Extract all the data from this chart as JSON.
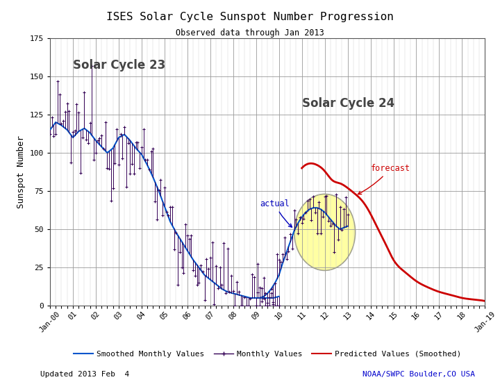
{
  "title": "ISES Solar Cycle Sunspot Number Progression",
  "subtitle": "Observed data through Jan 2013",
  "ylabel": "Sunspot Number",
  "ylim": [
    0,
    175
  ],
  "yticks": [
    0,
    25,
    50,
    75,
    100,
    125,
    150,
    175
  ],
  "background_color": "#ffffff",
  "grid_major_color": "#999999",
  "grid_minor_color": "#cccccc",
  "smoothed_color": "#0055cc",
  "monthly_color": "#330055",
  "predicted_color": "#cc0000",
  "annotation_actual_color": "#0000bb",
  "annotation_forecast_color": "#cc0000",
  "sc23_label": "Solar Cycle 23",
  "sc24_label": "Solar Cycle 24",
  "sc23_label_color": "#444444",
  "sc24_label_color": "#444444",
  "legend_smoothed": "Smoothed Monthly Values",
  "legend_monthly": "Monthly Values",
  "legend_predicted": "Predicted Values (Smoothed)",
  "footer_left": "Updated 2013 Feb  4",
  "footer_right": "NOAA/SWPC Boulder,CO USA",
  "footer_right_color": "#0000cc",
  "circle_color": "#ffff99",
  "circle_edge_color": "#999988",
  "sc23_smooth_months": [
    0,
    3,
    6,
    9,
    12,
    15,
    18,
    21,
    24,
    27,
    30,
    33,
    36,
    39,
    42,
    45,
    48,
    51,
    54,
    57,
    60,
    63,
    66,
    69,
    72,
    75,
    78,
    81,
    84,
    87,
    90,
    93,
    96,
    99,
    102,
    105,
    108,
    111,
    114,
    117,
    120
  ],
  "sc23_smooth_vals": [
    115,
    120,
    118,
    115,
    110,
    114,
    116,
    113,
    108,
    104,
    100,
    103,
    110,
    112,
    108,
    103,
    99,
    92,
    84,
    75,
    65,
    55,
    48,
    42,
    36,
    30,
    25,
    20,
    17,
    14,
    11,
    9,
    8,
    7,
    6,
    5,
    5,
    5,
    5,
    5,
    6
  ],
  "sc24_smooth_months": [
    108,
    110,
    112,
    114,
    116,
    118,
    120,
    122,
    124,
    126,
    128,
    130,
    132,
    134,
    136,
    138,
    140,
    142,
    144,
    146,
    148,
    150,
    152,
    154,
    156
  ],
  "sc24_smooth_vals": [
    5,
    5,
    6,
    8,
    11,
    15,
    20,
    28,
    35,
    42,
    49,
    54,
    58,
    61,
    63,
    64,
    64,
    63,
    61,
    58,
    55,
    52,
    50,
    51,
    52
  ],
  "pred_months": [
    132,
    136,
    140,
    144,
    148,
    152,
    156,
    160,
    164,
    168,
    172,
    176,
    180,
    186,
    192,
    198,
    204,
    210,
    216,
    222,
    228
  ],
  "pred_vals": [
    90,
    93,
    92,
    88,
    82,
    80,
    77,
    73,
    68,
    60,
    50,
    40,
    30,
    22,
    16,
    12,
    9,
    7,
    5,
    4,
    3
  ]
}
